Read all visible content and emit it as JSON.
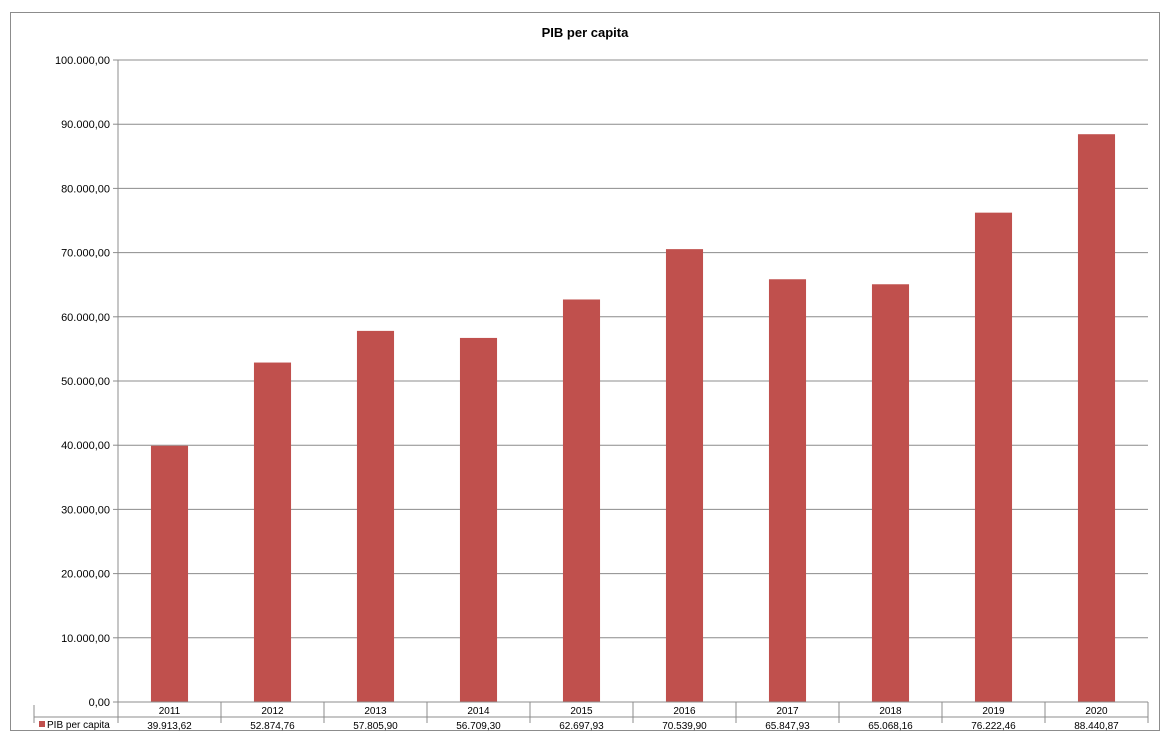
{
  "chart_data": {
    "type": "bar",
    "title": "PIB per capita",
    "xlabel": "",
    "ylabel": "",
    "ylim": [
      0,
      100000
    ],
    "y_tick_step": 10000,
    "y_tick_labels": [
      "0,00",
      "10.000,00",
      "20.000,00",
      "30.000,00",
      "40.000,00",
      "50.000,00",
      "60.000,00",
      "70.000,00",
      "80.000,00",
      "90.000,00",
      "100.000,00"
    ],
    "categories": [
      "2011",
      "2012",
      "2013",
      "2014",
      "2015",
      "2016",
      "2017",
      "2018",
      "2019",
      "2020"
    ],
    "series": [
      {
        "name": "PIB per capita",
        "color": "#c0504d",
        "values": [
          39913.62,
          52874.76,
          57805.9,
          56709.3,
          62697.93,
          70539.9,
          65847.93,
          65068.16,
          76222.46,
          88440.87
        ],
        "value_labels": [
          "39.913,62",
          "52.874,76",
          "57.805,90",
          "56.709,30",
          "62.697,93",
          "70.539,90",
          "65.847,93",
          "65.068,16",
          "76.222,46",
          "88.440,87"
        ]
      }
    ],
    "grid": true,
    "legend": "data-table"
  }
}
